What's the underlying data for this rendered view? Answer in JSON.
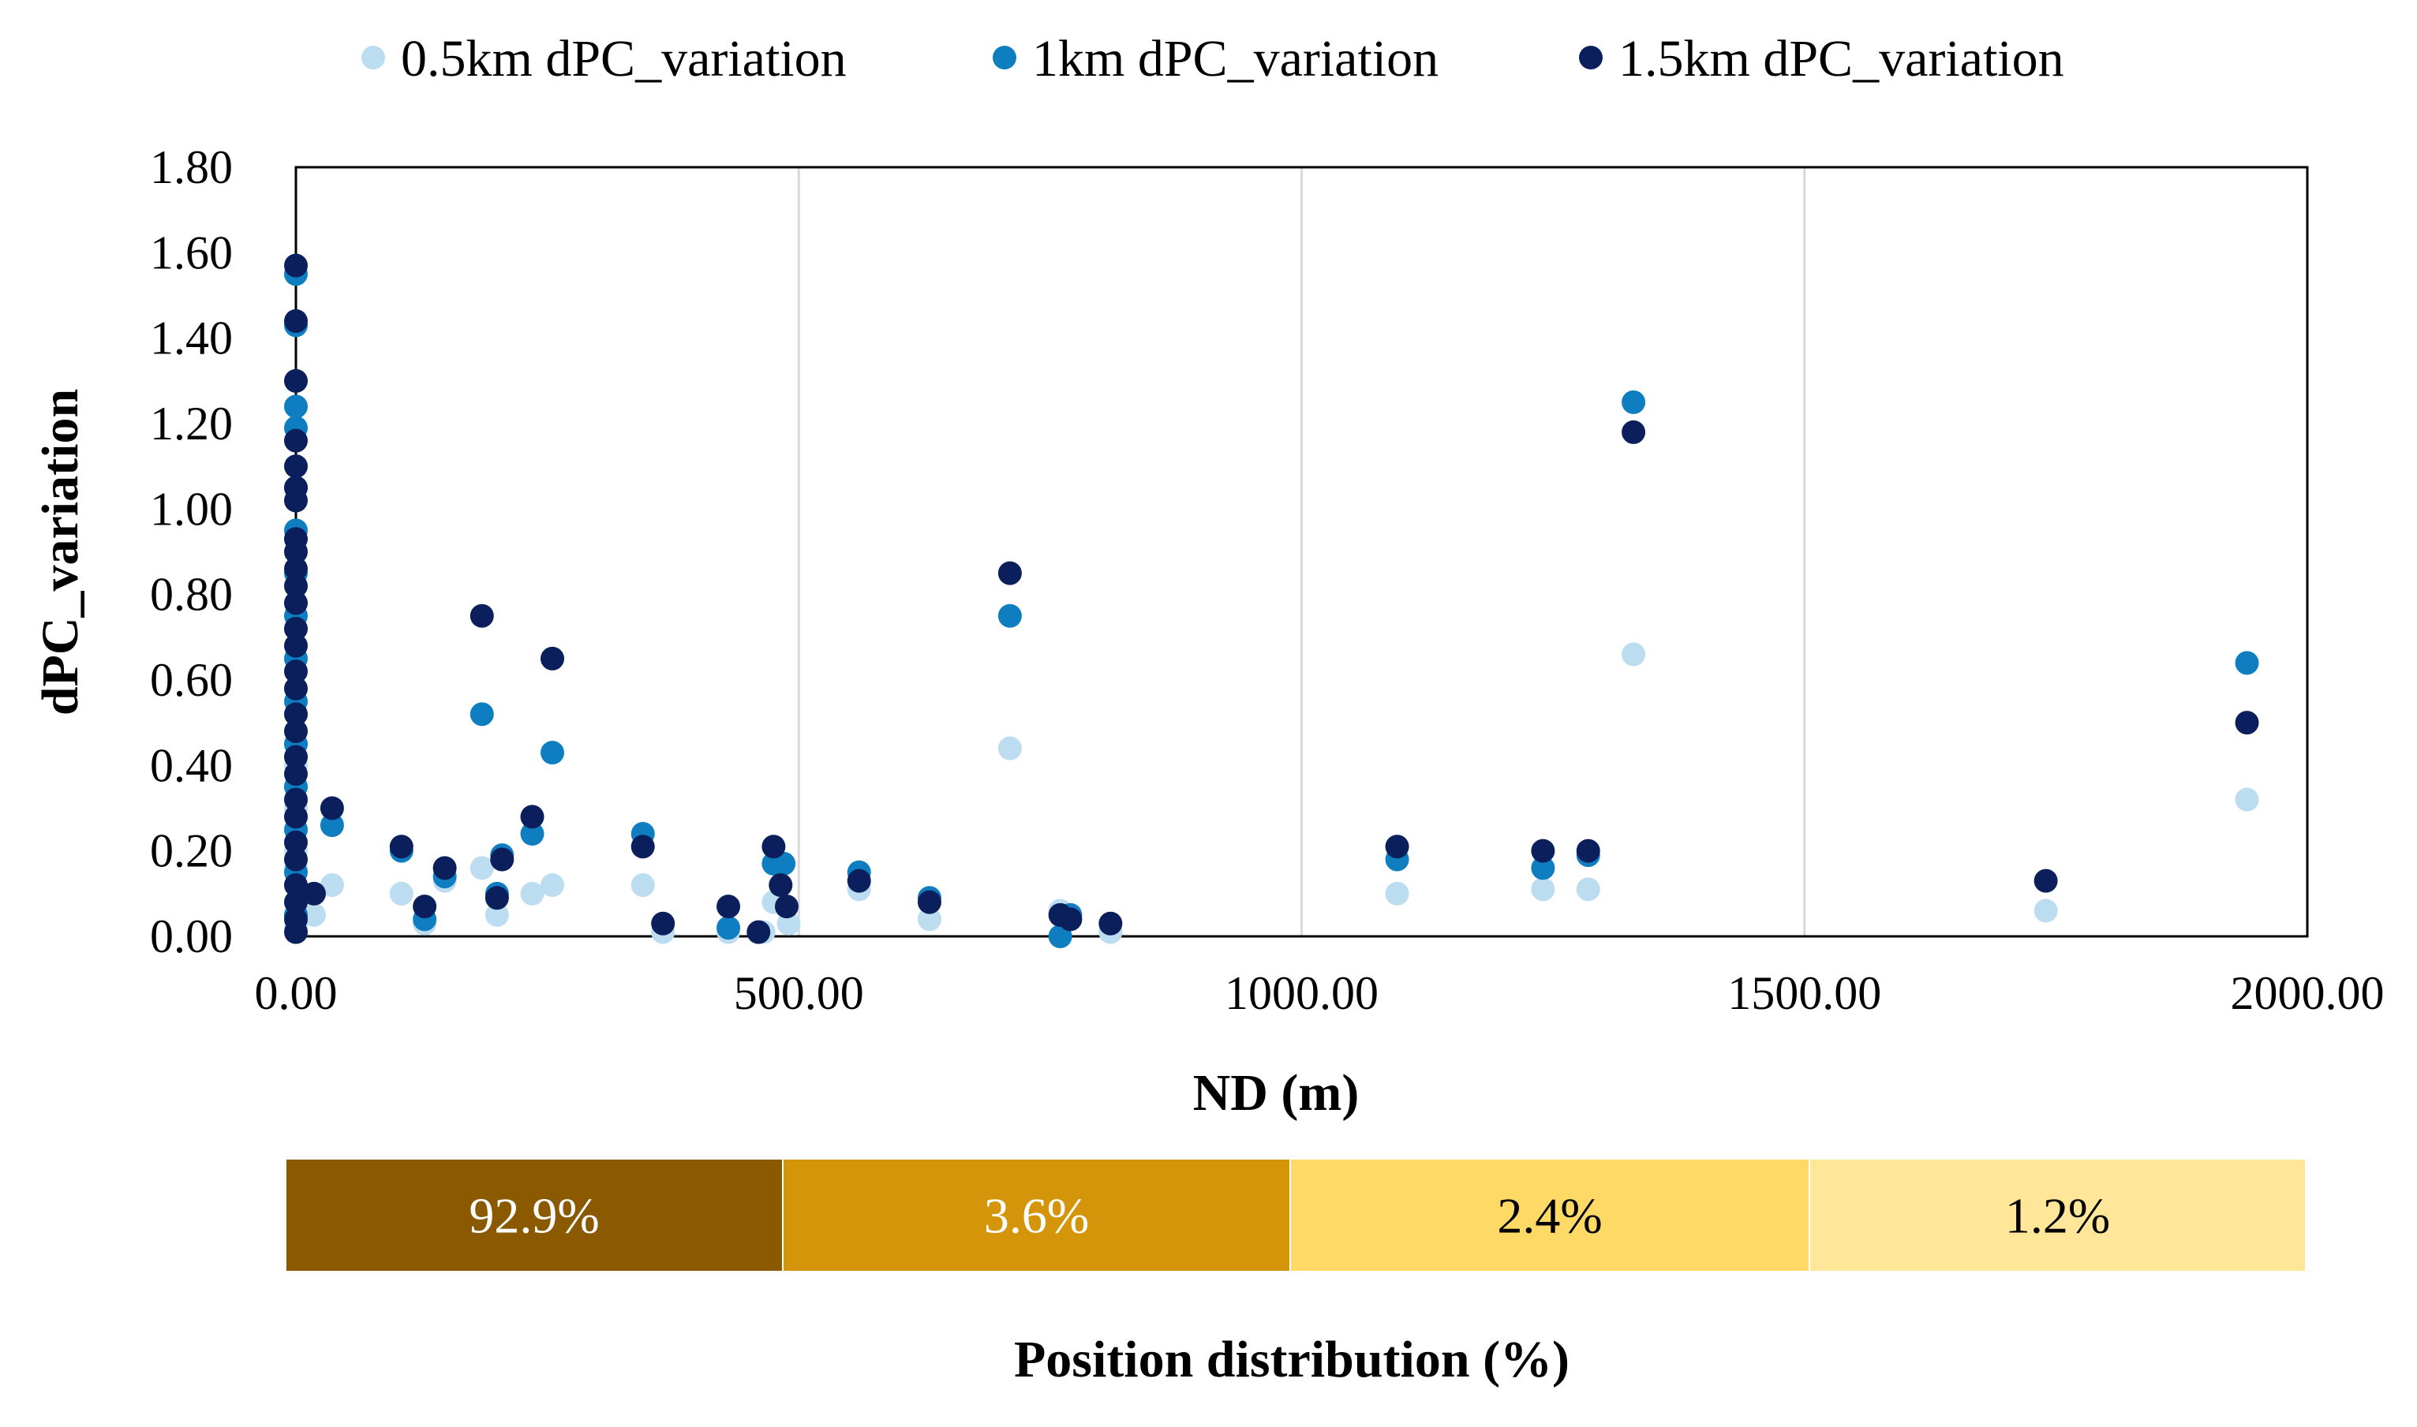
{
  "chart_data": {
    "type": "scatter",
    "title": "",
    "xlabel": "ND (m)",
    "ylabel": "dPC_variation",
    "xlim": [
      0,
      2000
    ],
    "ylim": [
      0,
      1.8
    ],
    "x_ticks": [
      "0.00",
      "500.00",
      "1000.00",
      "1500.00",
      "2000.00"
    ],
    "y_ticks": [
      "0.00",
      "0.20",
      "0.40",
      "0.60",
      "0.80",
      "1.00",
      "1.20",
      "1.40",
      "1.60",
      "1.80"
    ],
    "grid": "vertical",
    "legend_position": "top",
    "series": [
      {
        "name": "0.5km dPC_variation",
        "color": "#bcdcf0",
        "points": [
          [
            0,
            0.02
          ],
          [
            0,
            0.05
          ],
          [
            0,
            0.08
          ],
          [
            0,
            0.12
          ],
          [
            0,
            0.16
          ],
          [
            0,
            0.2
          ],
          [
            0,
            0.25
          ],
          [
            0,
            0.3
          ],
          [
            0,
            0.35
          ],
          [
            0,
            0.4
          ],
          [
            0,
            0.45
          ],
          [
            0,
            0.52
          ],
          [
            18,
            0.05
          ],
          [
            36,
            0.12
          ],
          [
            105,
            0.1
          ],
          [
            128,
            0.03
          ],
          [
            148,
            0.13
          ],
          [
            185,
            0.16
          ],
          [
            200,
            0.05
          ],
          [
            235,
            0.1
          ],
          [
            255,
            0.12
          ],
          [
            345,
            0.12
          ],
          [
            365,
            0.01
          ],
          [
            430,
            0.01
          ],
          [
            465,
            0.01
          ],
          [
            475,
            0.08
          ],
          [
            490,
            0.03
          ],
          [
            560,
            0.11
          ],
          [
            630,
            0.04
          ],
          [
            710,
            0.44
          ],
          [
            760,
            0.06
          ],
          [
            770,
            0.05
          ],
          [
            810,
            0.01
          ],
          [
            1095,
            0.1
          ],
          [
            1240,
            0.11
          ],
          [
            1285,
            0.11
          ],
          [
            1330,
            0.66
          ],
          [
            1740,
            0.06
          ],
          [
            1940,
            0.32
          ]
        ]
      },
      {
        "name": "1km dPC_variation",
        "color": "#0f7ec0",
        "points": [
          [
            0,
            0.05
          ],
          [
            0,
            0.15
          ],
          [
            0,
            0.25
          ],
          [
            0,
            0.35
          ],
          [
            0,
            0.45
          ],
          [
            0,
            0.55
          ],
          [
            0,
            0.65
          ],
          [
            0,
            0.75
          ],
          [
            0,
            0.85
          ],
          [
            0,
            0.95
          ],
          [
            0,
            1.05
          ],
          [
            0,
            1.19
          ],
          [
            0,
            1.24
          ],
          [
            0,
            1.43
          ],
          [
            0,
            1.55
          ],
          [
            36,
            0.26
          ],
          [
            105,
            0.2
          ],
          [
            128,
            0.04
          ],
          [
            148,
            0.14
          ],
          [
            185,
            0.52
          ],
          [
            200,
            0.1
          ],
          [
            205,
            0.19
          ],
          [
            235,
            0.24
          ],
          [
            255,
            0.43
          ],
          [
            345,
            0.24
          ],
          [
            430,
            0.02
          ],
          [
            475,
            0.17
          ],
          [
            485,
            0.17
          ],
          [
            560,
            0.15
          ],
          [
            630,
            0.09
          ],
          [
            710,
            0.75
          ],
          [
            760,
            0.0
          ],
          [
            770,
            0.05
          ],
          [
            1095,
            0.18
          ],
          [
            1240,
            0.16
          ],
          [
            1285,
            0.19
          ],
          [
            1330,
            1.25
          ],
          [
            1940,
            0.64
          ]
        ]
      },
      {
        "name": "1.5km dPC_variation",
        "color": "#0a1f5c",
        "points": [
          [
            0,
            0.01
          ],
          [
            0,
            0.04
          ],
          [
            0,
            0.08
          ],
          [
            0,
            0.12
          ],
          [
            0,
            0.18
          ],
          [
            0,
            0.22
          ],
          [
            0,
            0.28
          ],
          [
            0,
            0.32
          ],
          [
            0,
            0.38
          ],
          [
            0,
            0.42
          ],
          [
            0,
            0.48
          ],
          [
            0,
            0.52
          ],
          [
            0,
            0.58
          ],
          [
            0,
            0.62
          ],
          [
            0,
            0.68
          ],
          [
            0,
            0.72
          ],
          [
            0,
            0.78
          ],
          [
            0,
            0.82
          ],
          [
            0,
            0.86
          ],
          [
            0,
            0.9
          ],
          [
            0,
            0.93
          ],
          [
            0,
            1.02
          ],
          [
            0,
            1.05
          ],
          [
            0,
            1.1
          ],
          [
            0,
            1.16
          ],
          [
            0,
            1.3
          ],
          [
            0,
            1.44
          ],
          [
            0,
            1.57
          ],
          [
            18,
            0.1
          ],
          [
            36,
            0.3
          ],
          [
            105,
            0.21
          ],
          [
            128,
            0.07
          ],
          [
            148,
            0.16
          ],
          [
            185,
            0.75
          ],
          [
            200,
            0.09
          ],
          [
            205,
            0.18
          ],
          [
            235,
            0.28
          ],
          [
            255,
            0.65
          ],
          [
            345,
            0.21
          ],
          [
            365,
            0.03
          ],
          [
            430,
            0.07
          ],
          [
            460,
            0.01
          ],
          [
            475,
            0.21
          ],
          [
            482,
            0.12
          ],
          [
            488,
            0.07
          ],
          [
            560,
            0.13
          ],
          [
            630,
            0.08
          ],
          [
            710,
            0.85
          ],
          [
            760,
            0.05
          ],
          [
            770,
            0.04
          ],
          [
            810,
            0.03
          ],
          [
            1095,
            0.21
          ],
          [
            1240,
            0.2
          ],
          [
            1285,
            0.2
          ],
          [
            1330,
            1.18
          ],
          [
            1740,
            0.13
          ],
          [
            1940,
            0.5
          ]
        ]
      }
    ],
    "distribution": {
      "title": "Position distribution (%)",
      "segments": [
        {
          "label": "92.9%",
          "color": "#8b5a00",
          "text_color": "#ffffff"
        },
        {
          "label": "3.6%",
          "color": "#d4950a",
          "text_color": "#ffffff"
        },
        {
          "label": "2.4%",
          "color": "#ffd966",
          "text_color": "#000000"
        },
        {
          "label": "1.2%",
          "color": "#ffe699",
          "text_color": "#000000"
        }
      ]
    }
  }
}
